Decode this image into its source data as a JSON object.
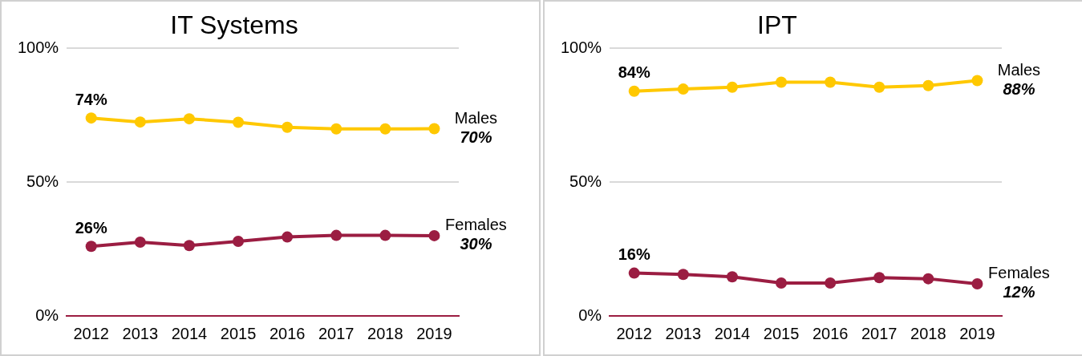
{
  "chart_data": [
    {
      "type": "line",
      "title": "IT Systems",
      "categories": [
        "2012",
        "2013",
        "2014",
        "2015",
        "2016",
        "2017",
        "2018",
        "2019"
      ],
      "series": [
        {
          "name": "Males",
          "color": "#ffc800",
          "values": [
            74,
            72.5,
            73.7,
            72.4,
            70.5,
            69.9,
            69.9,
            70
          ],
          "value_labels": [
            "74%",
            null,
            null,
            null,
            null,
            null,
            null,
            "70%"
          ]
        },
        {
          "name": "Females",
          "color": "#9b1d42",
          "values": [
            26,
            27.6,
            26.3,
            27.9,
            29.5,
            30.1,
            30.1,
            30
          ],
          "value_labels": [
            "26%",
            null,
            null,
            null,
            null,
            null,
            null,
            "30%"
          ]
        }
      ],
      "ylim": [
        0,
        100
      ],
      "yticks": [
        {
          "value": 0,
          "label": "0%"
        },
        {
          "value": 50,
          "label": "50%"
        },
        {
          "value": 100,
          "label": "100%"
        }
      ],
      "grid": "y",
      "legend": false,
      "marker": "circle",
      "line_style": "solid"
    },
    {
      "type": "line",
      "title": "IPT",
      "categories": [
        "2012",
        "2013",
        "2014",
        "2015",
        "2016",
        "2017",
        "2018",
        "2019"
      ],
      "series": [
        {
          "name": "Males",
          "color": "#ffc800",
          "values": [
            84,
            84.8,
            85.5,
            87.4,
            87.4,
            85.5,
            86.1,
            88
          ],
          "value_labels": [
            "84%",
            null,
            null,
            null,
            null,
            null,
            null,
            "88%"
          ]
        },
        {
          "name": "Females",
          "color": "#9b1d42",
          "values": [
            16,
            15.5,
            14.6,
            12.3,
            12.3,
            14.3,
            13.9,
            12
          ],
          "value_labels": [
            "16%",
            null,
            null,
            null,
            null,
            null,
            null,
            "12%"
          ]
        }
      ],
      "ylim": [
        0,
        100
      ],
      "yticks": [
        {
          "value": 0,
          "label": "0%"
        },
        {
          "value": 50,
          "label": "50%"
        },
        {
          "value": 100,
          "label": "100%"
        }
      ],
      "grid": "y",
      "legend": false,
      "marker": "circle",
      "line_style": "solid"
    }
  ]
}
